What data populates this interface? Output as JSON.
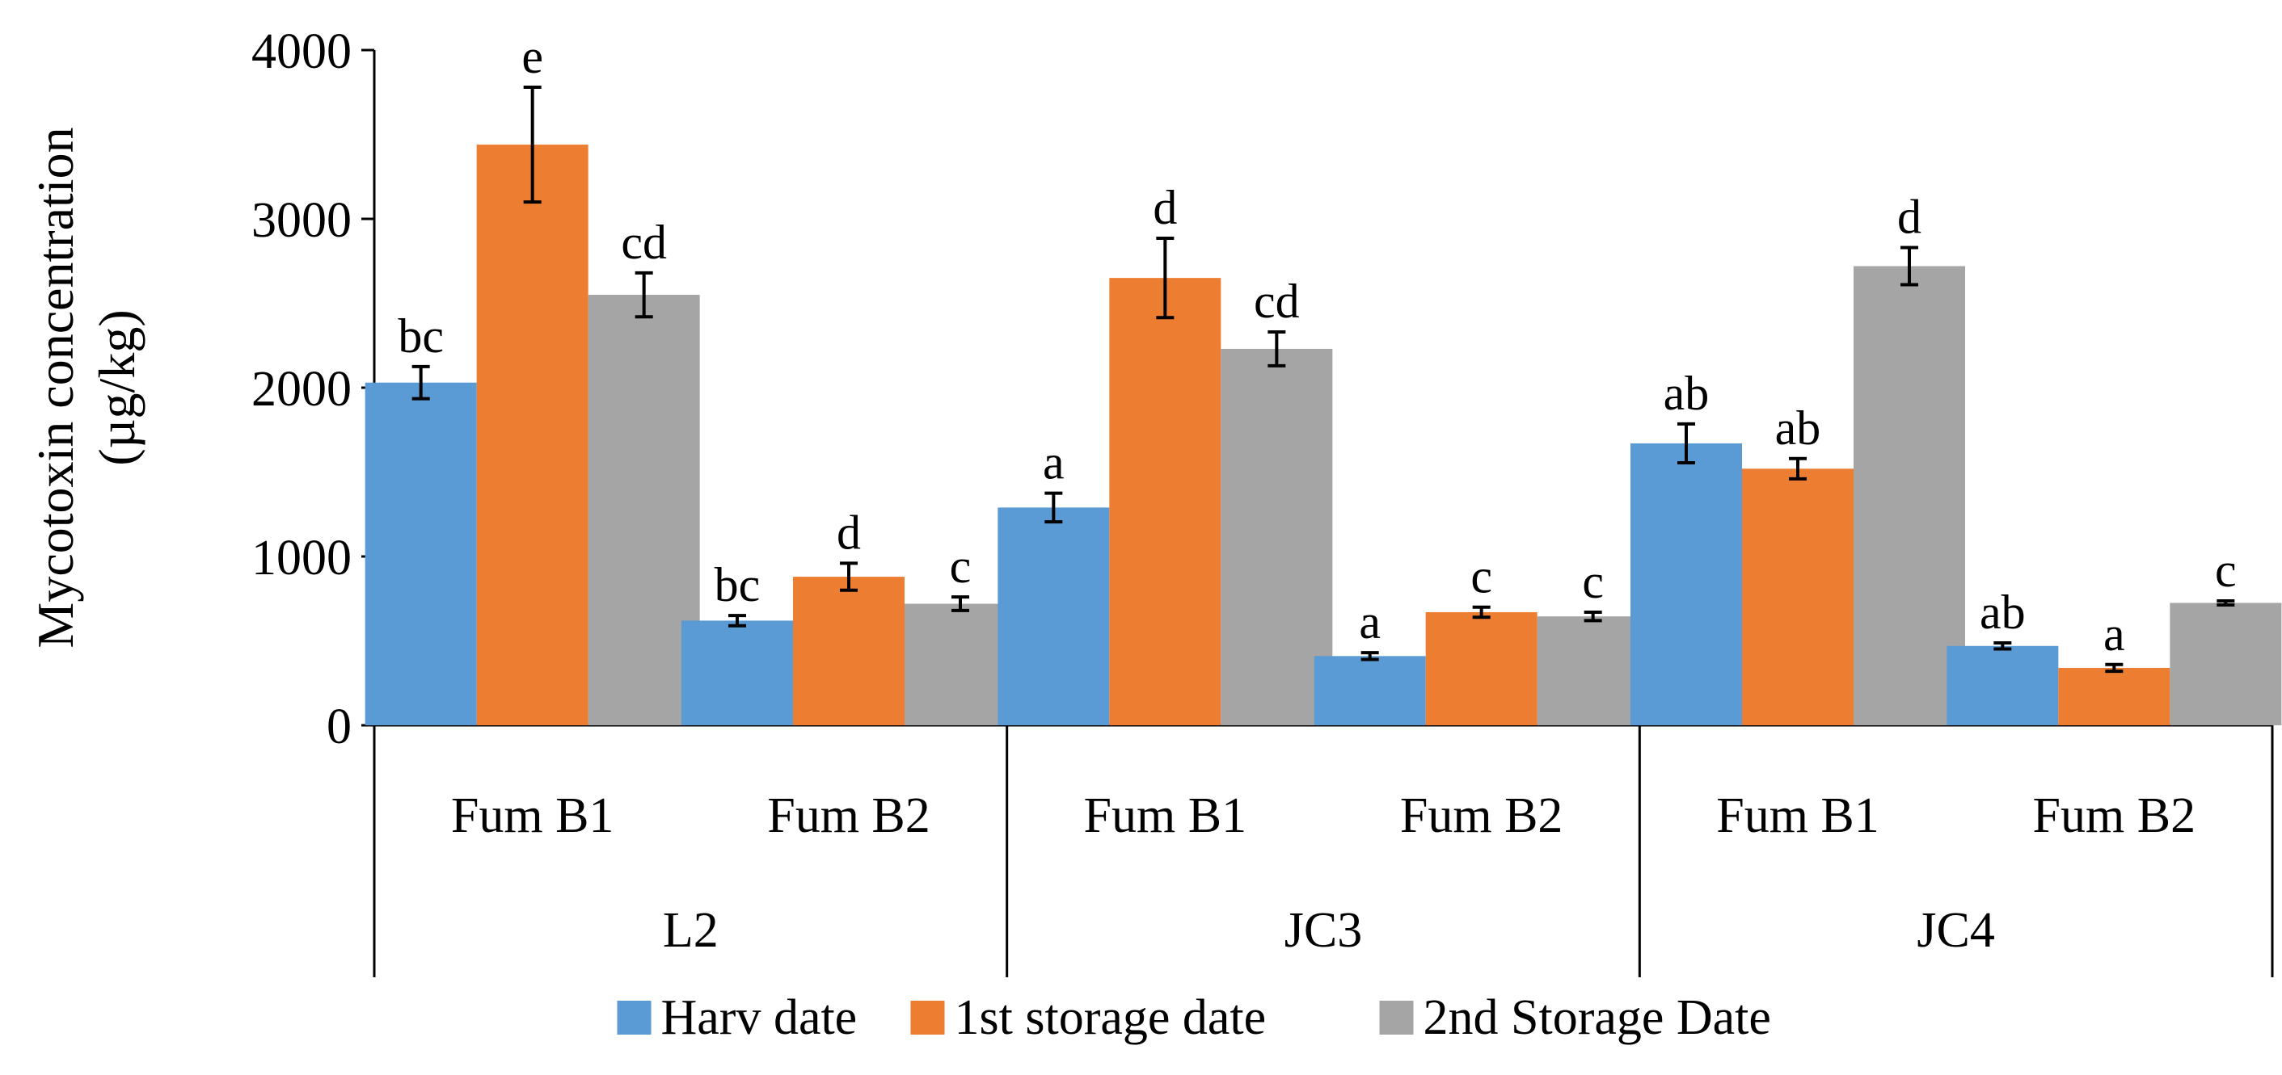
{
  "chart_data": {
    "type": "bar",
    "title": "",
    "xlabel": "",
    "ylabel": "Mycotoxin concentration (µg/kg)",
    "ylabel_lines": [
      "Mycotoxin concentration",
      "(µg/kg)"
    ],
    "ylim": [
      0,
      4000
    ],
    "yticks": [
      "0",
      "1000",
      "2000",
      "3000",
      "4000"
    ],
    "grid": false,
    "legend_position": "bottom",
    "groups": [
      {
        "label": "L2",
        "categories": [
          "Fum B1",
          "Fum B2"
        ]
      },
      {
        "label": "JC3",
        "categories": [
          "Fum B1",
          "Fum B2"
        ]
      },
      {
        "label": "JC4",
        "categories": [
          "Fum B1",
          "Fum B2"
        ]
      }
    ],
    "series": [
      {
        "name": "Harv date",
        "color": "#5B9BD5",
        "values": [
          2030,
          620,
          1290,
          410,
          1670,
          470
        ],
        "errors": [
          95,
          30,
          85,
          20,
          115,
          18
        ],
        "letters": [
          "bc",
          "bc",
          "a",
          "a",
          "ab",
          "ab"
        ]
      },
      {
        "name": "1st storage date",
        "color": "#ED7D31",
        "values": [
          3440,
          880,
          2650,
          670,
          1520,
          340
        ],
        "errors": [
          340,
          80,
          235,
          30,
          60,
          20
        ],
        "letters": [
          "e",
          "d",
          "d",
          "c",
          "ab",
          "a"
        ]
      },
      {
        "name": "2nd Storage Date",
        "color": "#A5A5A5",
        "values": [
          2550,
          720,
          2230,
          645,
          2720,
          725
        ],
        "errors": [
          130,
          40,
          100,
          25,
          110,
          12
        ],
        "letters": [
          "cd",
          "c",
          "cd",
          "c",
          "d",
          "c"
        ]
      }
    ]
  }
}
